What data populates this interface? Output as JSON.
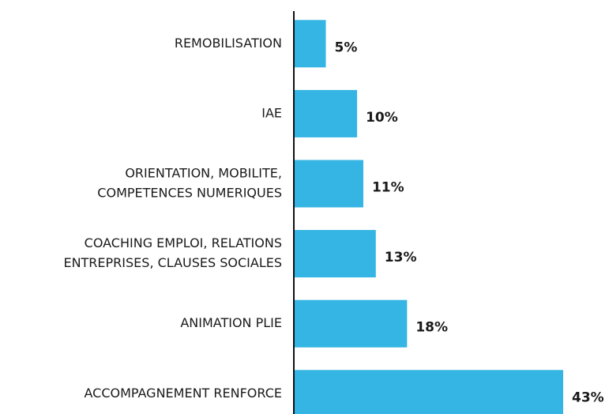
{
  "chart_data": {
    "type": "bar",
    "orientation": "horizontal",
    "categories": [
      [
        "REMOBILISATION"
      ],
      [
        "IAE"
      ],
      [
        "ORIENTATION, MOBILITE,",
        "COMPETENCES NUMERIQUES"
      ],
      [
        "COACHING EMPLOI, RELATIONS",
        "ENTREPRISES, CLAUSES SOCIALES"
      ],
      [
        "ANIMATION PLIE"
      ],
      [
        "ACCOMPAGNEMENT RENFORCE"
      ]
    ],
    "values": [
      5,
      10,
      11,
      13,
      18,
      43
    ],
    "value_labels": [
      "5%",
      "10%",
      "11%",
      "13%",
      "18%",
      "43%"
    ],
    "color": "#35b5e4"
  }
}
